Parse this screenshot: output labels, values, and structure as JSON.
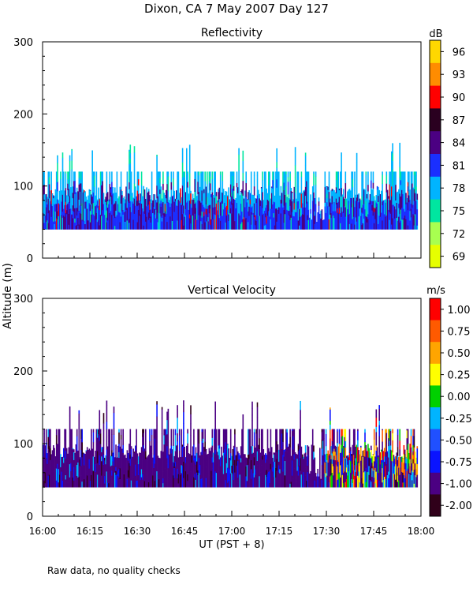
{
  "title": "Dixon, CA  7 May 2007  Day 127",
  "footnote": "Raw data, no quality checks",
  "shared_ylabel": "Altitude (m)",
  "shared_xlabel": "UT  (PST + 8)",
  "chart_data": [
    {
      "type": "heatmap",
      "title": "Reflectivity",
      "xlabel": "UT  (PST + 8)",
      "ylabel": "Altitude (m)",
      "xlim": [
        0,
        120
      ],
      "x_tick_values": [
        0,
        15,
        30,
        45,
        60,
        75,
        90,
        105,
        120
      ],
      "x_tick_labels": [
        "16:00",
        "16:15",
        "16:30",
        "16:45",
        "17:00",
        "17:15",
        "17:30",
        "17:45",
        "18:00"
      ],
      "ylim": [
        0,
        300
      ],
      "y_ticks": [
        0,
        100,
        200,
        300
      ],
      "y_tick_labels": [
        "0",
        "100",
        "200",
        "300"
      ],
      "colorbar": {
        "unit": "dB",
        "labels": [
          "96",
          "93",
          "90",
          "87",
          "84",
          "81",
          "78",
          "75",
          "72",
          "69"
        ],
        "colors": [
          "#ffd700",
          "#ff8c00",
          "#ff0000",
          "#2a0020",
          "#4b0082",
          "#1a2fff",
          "#00b4ff",
          "#00e6a0",
          "#a8ff50",
          "#e6ff00"
        ]
      },
      "data_altitude_range_m": [
        40,
        160
      ],
      "dominant_values": [
        "78",
        "81",
        "84"
      ]
    },
    {
      "type": "heatmap",
      "title": "Vertical Velocity",
      "xlabel": "UT  (PST + 8)",
      "ylabel": "Altitude (m)",
      "xlim": [
        0,
        120
      ],
      "x_tick_values": [
        0,
        15,
        30,
        45,
        60,
        75,
        90,
        105,
        120
      ],
      "x_tick_labels": [
        "16:00",
        "16:15",
        "16:30",
        "16:45",
        "17:00",
        "17:15",
        "17:30",
        "17:45",
        "18:00"
      ],
      "ylim": [
        0,
        300
      ],
      "y_ticks": [
        0,
        100,
        200,
        300
      ],
      "y_tick_labels": [
        "0",
        "100",
        "200",
        "300"
      ],
      "colorbar": {
        "unit": "m/s",
        "labels": [
          "1.00",
          "0.75",
          "0.50",
          "0.25",
          "0.00",
          "-0.25",
          "-0.50",
          "-0.75",
          "-1.00",
          "-2.00"
        ],
        "colors": [
          "#ff0000",
          "#ff5a00",
          "#ffa500",
          "#ffff00",
          "#00d000",
          "#00b4ff",
          "#2050ff",
          "#0a14ff",
          "#4b0082",
          "#30001a"
        ]
      },
      "data_altitude_range_m": [
        40,
        160
      ],
      "dominant_values": [
        "-0.75",
        "-1.00"
      ]
    }
  ]
}
